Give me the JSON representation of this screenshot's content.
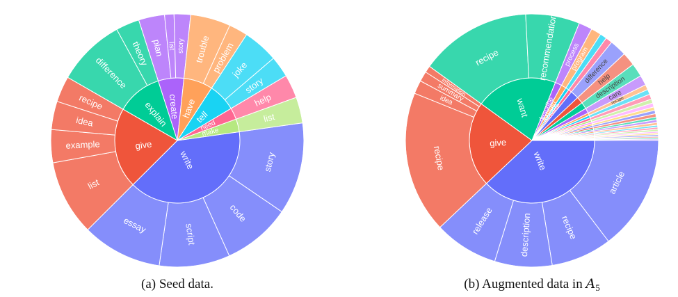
{
  "captions": {
    "a": "(a) Seed data.",
    "b_prefix": "(b) Augmented data in ",
    "b_symbol": "A",
    "b_sub": "5"
  },
  "chart_data": [
    {
      "type": "sunburst",
      "center_verb": "",
      "colors": {
        "write": "#636efa",
        "give": "#ef553b",
        "explain": "#00cc96",
        "create": "#ab63fa",
        "have": "#ffa15a",
        "tell": "#19d3f3",
        "need": "#ff6692",
        "make": "#b6e880"
      },
      "verbs": [
        {
          "name": "write",
          "objects": [
            {
              "name": "story",
              "value": 39
            },
            {
              "name": "code",
              "value": 29
            },
            {
              "name": "script",
              "value": 30
            },
            {
              "name": "essay",
              "value": 34
            }
          ]
        },
        {
          "name": "give",
          "objects": [
            {
              "name": "list",
              "value": 32
            },
            {
              "name": "example",
              "value": 14
            },
            {
              "name": "idea",
              "value": 12
            },
            {
              "name": "recipe",
              "value": 11
            }
          ]
        },
        {
          "name": "explain",
          "objects": [
            {
              "name": "difference",
              "value": 29
            },
            {
              "name": "theory",
              "value": 10
            }
          ]
        },
        {
          "name": "create",
          "objects": [
            {
              "name": "plan",
              "value": 11
            },
            {
              "name": "list",
              "value": 4
            },
            {
              "name": "story",
              "value": 7
            }
          ]
        },
        {
          "name": "have",
          "objects": [
            {
              "name": "trouble",
              "value": 17
            },
            {
              "name": "problem",
              "value": 8
            }
          ]
        },
        {
          "name": "tell",
          "objects": [
            {
              "name": "joke",
              "value": 15
            },
            {
              "name": "story",
              "value": 9
            }
          ]
        },
        {
          "name": "need",
          "objects": [
            {
              "name": "help",
              "value": 10
            }
          ]
        },
        {
          "name": "make",
          "objects": [
            {
              "name": "list",
              "value": 11
            }
          ]
        }
      ]
    },
    {
      "type": "sunburst",
      "colors": {
        "write": "#636efa",
        "give": "#ef553b",
        "want": "#00cc96",
        "describe": "#ab63fa",
        "explain": "#ffa15a",
        "create": "#19d3f3",
        "provide": "#ff6692"
      },
      "verbs": [
        {
          "name": "write",
          "objects": [
            {
              "name": "article",
              "value": 34
            },
            {
              "name": "recipe",
              "value": 18
            },
            {
              "name": "description",
              "value": 17
            },
            {
              "name": "release",
              "value": 19
            }
          ]
        },
        {
          "name": "give",
          "objects": [
            {
              "name": "recipe",
              "value": 42
            },
            {
              "name": "idea",
              "value": 4
            },
            {
              "name": "summary",
              "value": 3
            },
            {
              "name": "information",
              "value": 2
            }
          ]
        },
        {
          "name": "want",
          "objects": [
            {
              "name": "recipe",
              "value": 33
            },
            {
              "name": "recommendation",
              "value": 16
            }
          ]
        },
        {
          "name": "describe",
          "objects": [
            {
              "name": "process",
              "value": 4
            }
          ]
        },
        {
          "name": "explain",
          "objects": [
            {
              "name": "program",
              "value": 3
            }
          ]
        },
        {
          "name": "create",
          "objects": [
            {
              "name": "",
              "value": 2
            }
          ]
        },
        {
          "name": "provide",
          "objects": [
            {
              "name": "",
              "value": 2
            }
          ]
        }
      ],
      "tail": [
        {
          "verb": "",
          "object": "difference",
          "value": 5
        },
        {
          "verb": "",
          "object": "help",
          "value": 4
        },
        {
          "verb": "",
          "object": "description",
          "value": 4
        },
        {
          "verb": "",
          "object": "care",
          "value": 3
        },
        {
          "verb": "",
          "object": "recipe",
          "value": 1.5
        },
        {
          "verb": "",
          "object": "",
          "value": 1.5
        },
        {
          "verb": "",
          "object": "",
          "value": 1.5
        },
        {
          "verb": "",
          "object": "",
          "value": 1.2
        },
        {
          "verb": "",
          "object": "",
          "value": 1.2
        },
        {
          "verb": "",
          "object": "",
          "value": 1.0
        },
        {
          "verb": "",
          "object": "",
          "value": 1.0
        },
        {
          "verb": "",
          "object": "",
          "value": 1.0
        },
        {
          "verb": "",
          "object": "",
          "value": 0.8
        },
        {
          "verb": "",
          "object": "",
          "value": 0.8
        },
        {
          "verb": "",
          "object": "",
          "value": 0.8
        },
        {
          "verb": "",
          "object": "",
          "value": 0.6
        },
        {
          "verb": "",
          "object": "",
          "value": 0.6
        },
        {
          "verb": "",
          "object": "",
          "value": 0.6
        },
        {
          "verb": "",
          "object": "",
          "value": 0.5
        },
        {
          "verb": "",
          "object": "",
          "value": 0.5
        },
        {
          "verb": "",
          "object": "",
          "value": 0.5
        },
        {
          "verb": "",
          "object": "",
          "value": 0.4
        },
        {
          "verb": "",
          "object": "",
          "value": 0.4
        },
        {
          "verb": "",
          "object": "",
          "value": 0.4
        }
      ],
      "tail_palette": [
        "#636efa",
        "#ef553b",
        "#00cc96",
        "#ab63fa",
        "#ffa15a",
        "#19d3f3",
        "#ff6692",
        "#b6e880",
        "#ff97ff",
        "#fecb52"
      ]
    }
  ]
}
